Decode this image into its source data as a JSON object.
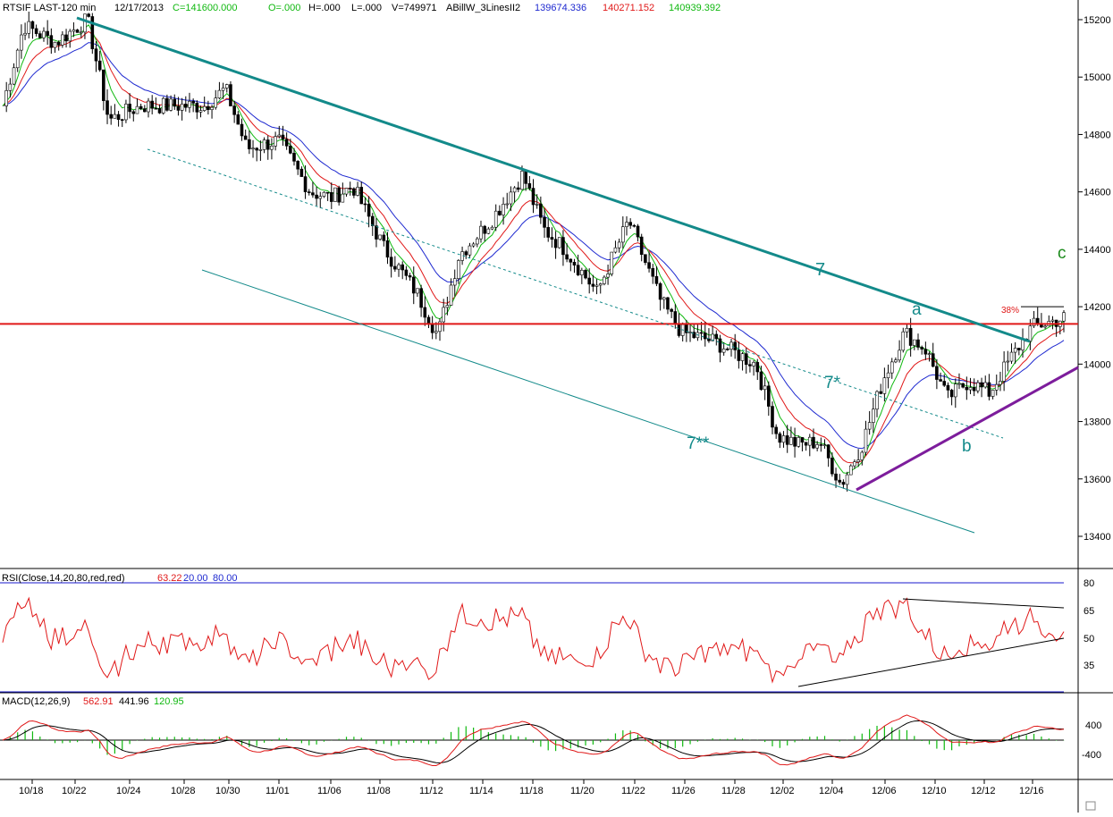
{
  "header": {
    "symbol": "RTSIF LAST-120 min",
    "date": "12/17/2013",
    "close": "C=141600.000",
    "open": "O=.000",
    "high": "H=.000",
    "low": "L=.000",
    "volume": "V=749971",
    "indicator": "ABillW_3LinesII2",
    "line1": "139674.336",
    "line2": "140271.152",
    "line3": "140939.392"
  },
  "colors": {
    "blue": "#1f2ad0",
    "red": "#e01818",
    "green": "#10b810",
    "teal": "#138a8a",
    "purple": "#7d1d9c",
    "black": "#000000",
    "grid": "#1a1acc"
  },
  "annotations": {
    "label_7": "7",
    "label_7s": "7*",
    "label_7ss": "7**",
    "label_a": "a",
    "label_b": "b",
    "label_c": "c",
    "label_38": "38%"
  },
  "rsi_panel": {
    "title": "RSI(Close,14,20,80,red,red)",
    "value": "63.22",
    "low": "20.00",
    "high": "80.00",
    "ticks": [
      "80",
      "65",
      "50",
      "35"
    ]
  },
  "macd_panel": {
    "title": "MACD(12,26,9)",
    "macd": "562.91",
    "signal": "441.96",
    "hist": "120.95",
    "ticks": [
      "400",
      "-400"
    ]
  },
  "chart_data": [
    {
      "type": "candlestick",
      "title": "RTSIF LAST-120 min",
      "x_ticks": [
        "10/18",
        "10/22",
        "10/24",
        "10/28",
        "10/30",
        "11/01",
        "11/06",
        "11/08",
        "11/12",
        "11/14",
        "11/18",
        "11/20",
        "11/22",
        "11/26",
        "11/28",
        "12/02",
        "12/04",
        "12/06",
        "12/10",
        "12/12",
        "12/16"
      ],
      "y_ticks": [
        15200,
        15000,
        14800,
        14600,
        14400,
        14200,
        14000,
        13800,
        13600,
        13400
      ],
      "ylim": [
        13300,
        15250
      ],
      "price_path": [
        [
          0,
          14900
        ],
        [
          0.02,
          15180
        ],
        [
          0.05,
          15120
        ],
        [
          0.08,
          15200
        ],
        [
          0.1,
          14850
        ],
        [
          0.13,
          14900
        ],
        [
          0.16,
          14900
        ],
        [
          0.19,
          14900
        ],
        [
          0.21,
          14960
        ],
        [
          0.23,
          14750
        ],
        [
          0.26,
          14780
        ],
        [
          0.29,
          14600
        ],
        [
          0.31,
          14580
        ],
        [
          0.33,
          14620
        ],
        [
          0.36,
          14400
        ],
        [
          0.39,
          14250
        ],
        [
          0.41,
          14100
        ],
        [
          0.43,
          14380
        ],
        [
          0.46,
          14500
        ],
        [
          0.49,
          14660
        ],
        [
          0.51,
          14470
        ],
        [
          0.53,
          14400
        ],
        [
          0.56,
          14250
        ],
        [
          0.59,
          14500
        ],
        [
          0.62,
          14220
        ],
        [
          0.64,
          14110
        ],
        [
          0.67,
          14080
        ],
        [
          0.69,
          14040
        ],
        [
          0.71,
          14000
        ],
        [
          0.73,
          13750
        ],
        [
          0.75,
          13720
        ],
        [
          0.77,
          13730
        ],
        [
          0.79,
          13580
        ],
        [
          0.81,
          13720
        ],
        [
          0.83,
          13950
        ],
        [
          0.85,
          14110
        ],
        [
          0.87,
          14050
        ],
        [
          0.89,
          13880
        ],
        [
          0.91,
          13940
        ],
        [
          0.93,
          13900
        ],
        [
          0.95,
          14020
        ],
        [
          0.97,
          14130
        ],
        [
          1.0,
          14160
        ]
      ],
      "horizontal_line": 14140,
      "series": [
        {
          "name": "ABillW_3LinesII2 line 1",
          "color": "blue",
          "last": 13967.4336
        },
        {
          "name": "ABillW_3LinesII2 line 2",
          "color": "red",
          "last": 14027.1152
        },
        {
          "name": "ABillW_3LinesII2 line 3",
          "color": "green",
          "last": 14093.9392
        }
      ],
      "annotations": [
        "7",
        "7*",
        "7**",
        "a",
        "b",
        "c",
        "38%"
      ]
    },
    {
      "type": "line",
      "title": "RSI(Close,14,20,80,red,red)",
      "ylim": [
        20,
        80
      ],
      "y_ticks": [
        80,
        65,
        50,
        35
      ],
      "series": [
        {
          "name": "RSI",
          "last": 63.22
        }
      ]
    },
    {
      "type": "line",
      "title": "MACD(12,26,9)",
      "y_ticks": [
        400,
        -400
      ],
      "series": [
        {
          "name": "MACD",
          "last": 562.91
        },
        {
          "name": "Signal",
          "last": 441.96
        },
        {
          "name": "Histogram",
          "last": 120.95
        }
      ]
    }
  ]
}
